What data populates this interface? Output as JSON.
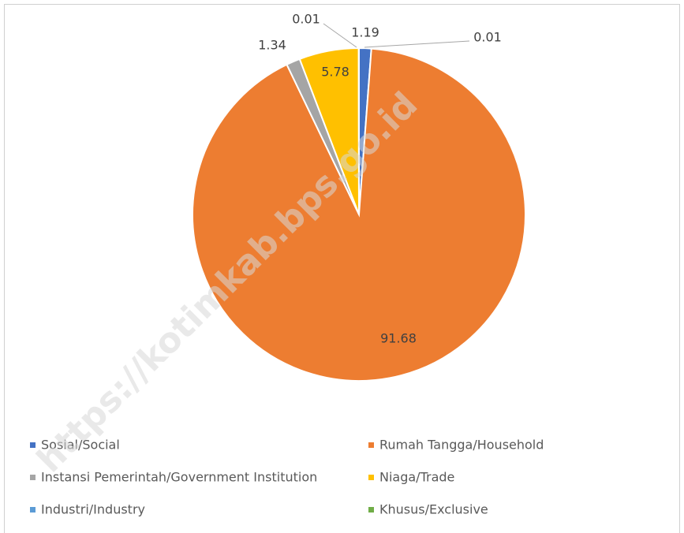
{
  "chart_data": {
    "type": "pie",
    "categories": [
      "Sosial/Social",
      "Rumah Tangga/Household",
      "Instansi Pemerintah/Government Institution",
      "Niaga/Trade",
      "Industri/Industry",
      "Khusus/Exclusive"
    ],
    "values": [
      1.19,
      91.68,
      1.34,
      5.78,
      0.01,
      0.01
    ],
    "colors": [
      "#4472c4",
      "#ed7d31",
      "#a5a5a5",
      "#ffc000",
      "#5b9bd5",
      "#70ad47"
    ],
    "legend": "bottom",
    "watermark": "https://kotimkab.bps.go.id"
  }
}
